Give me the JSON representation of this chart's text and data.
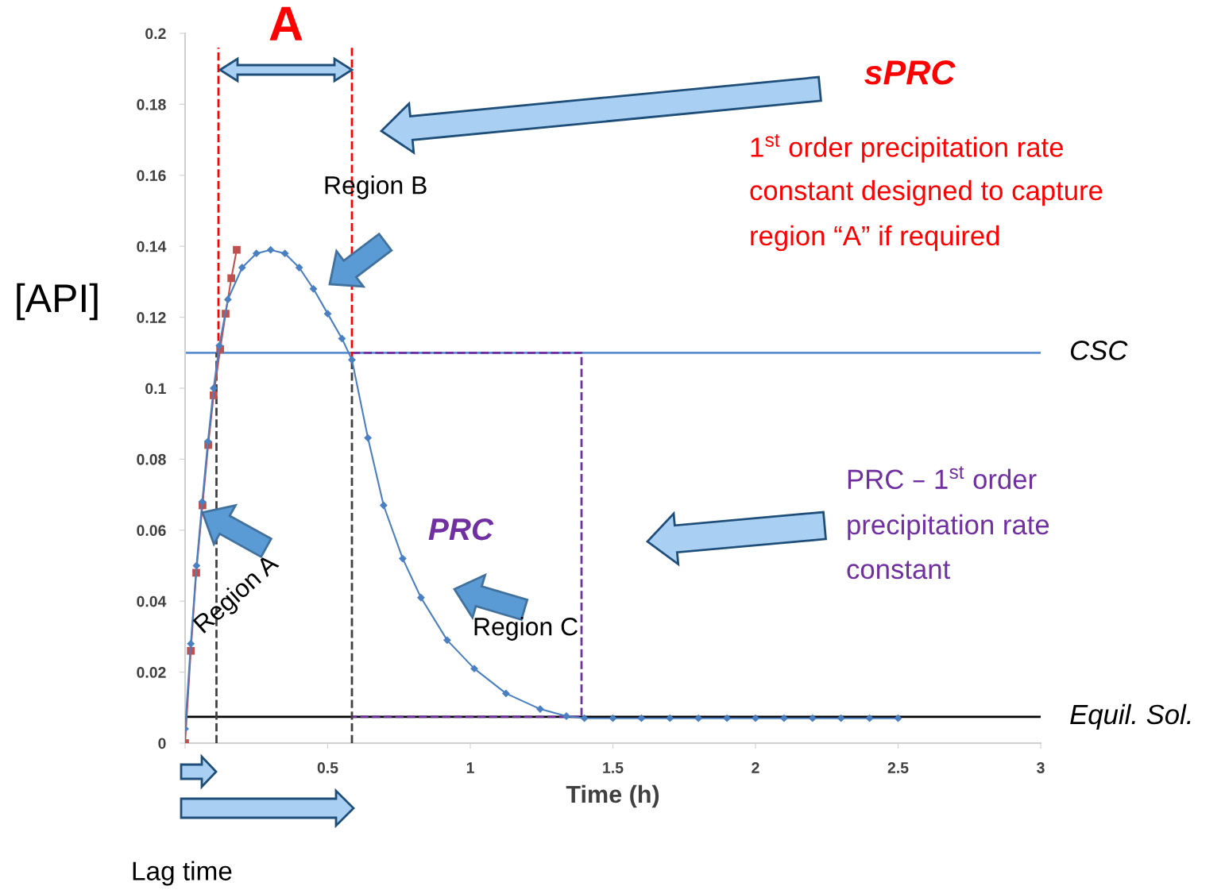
{
  "chart_data": {
    "type": "line",
    "xlabel": "Time (h)",
    "ylabel": "[API]",
    "xlim": [
      0,
      3
    ],
    "ylim": [
      0,
      0.2
    ],
    "xticks": [
      {
        "value": 0,
        "label": null
      },
      0.5,
      1,
      1.5,
      2,
      2.5,
      3
    ],
    "yticks": [
      0,
      0.02,
      0.04,
      0.06,
      0.08,
      0.1,
      0.12,
      0.14,
      0.16,
      0.18,
      0.2
    ],
    "grid": false,
    "legend": false,
    "series": [
      {
        "color": "#4a7fc1",
        "marker": "diamond",
        "line_style": "solid",
        "x": [
          0,
          0.02,
          0.04,
          0.06,
          0.08,
          0.1,
          0.12,
          0.15,
          0.2,
          0.25,
          0.3,
          0.35,
          0.4,
          0.45,
          0.5,
          0.55,
          0.585,
          0.641,
          0.696,
          0.763,
          0.827,
          0.919,
          1.014,
          1.125,
          1.245,
          1.337,
          1.4,
          1.5,
          1.6,
          1.7,
          1.8,
          1.9,
          2.0,
          2.1,
          2.2,
          2.3,
          2.4,
          2.5
        ],
        "values": [
          0.004,
          0.028,
          0.05,
          0.068,
          0.085,
          0.1,
          0.112,
          0.125,
          0.134,
          0.138,
          0.139,
          0.138,
          0.134,
          0.128,
          0.121,
          0.114,
          0.108,
          0.086,
          0.067,
          0.052,
          0.041,
          0.029,
          0.021,
          0.014,
          0.0096,
          0.0076,
          0.007,
          0.007,
          0.007,
          0.007,
          0.007,
          0.007,
          0.007,
          0.007,
          0.007,
          0.007,
          0.007,
          0.007
        ]
      },
      {
        "color": "#c0504d",
        "marker": "square",
        "line_style": "solid",
        "x": [
          0,
          0.02,
          0.039,
          0.061,
          0.081,
          0.1,
          0.123,
          0.142,
          0.162,
          0.181
        ],
        "values": [
          0,
          0.026,
          0.048,
          0.067,
          0.084,
          0.098,
          0.111,
          0.121,
          0.131,
          0.139
        ]
      },
      {
        "color": "#ff0000",
        "marker": "none",
        "line_style": "dashed",
        "x": [
          0.117,
          0.117
        ],
        "values": [
          0.11,
          0.196
        ]
      },
      {
        "color": "#ff0000",
        "marker": "none",
        "line_style": "dashed",
        "x": [
          0.585,
          0.585
        ],
        "values": [
          0.108,
          0.196
        ]
      },
      {
        "color": "#404040",
        "marker": "none",
        "line_style": "dashed",
        "x": [
          0.11,
          0.11
        ],
        "values": [
          0,
          0.11
        ]
      },
      {
        "color": "#404040",
        "marker": "none",
        "line_style": "dashed",
        "x": [
          0.585,
          0.585
        ],
        "values": [
          0,
          0.108
        ]
      },
      {
        "color": "#7030a0",
        "marker": "none",
        "line_style": "dashed",
        "x": [
          0.585,
          1.39,
          1.39,
          0.585
        ],
        "values": [
          0.11,
          0.11,
          0.0074,
          0.0074
        ]
      }
    ],
    "ref_lines": [
      {
        "axis": "y",
        "value": 0.11,
        "label": "CSC",
        "color": "#5b8fd0",
        "line_style": "solid"
      },
      {
        "axis": "y",
        "value": 0.0074,
        "label": "Equil. Sol.",
        "color": "#000000",
        "line_style": "solid"
      }
    ],
    "annotations": [
      "A",
      "sPRC",
      "1$^{st}$ order precipitation rate",
      "constant designed to capture",
      "region “A” if required",
      "Region B",
      {
        "text": "Region A",
        "x": 0.061,
        "y": 0.065
      },
      "PRC",
      "Region C",
      "PRC – 1$^{st}$ order",
      "precipitation rate",
      "constant",
      "Lag time"
    ]
  }
}
